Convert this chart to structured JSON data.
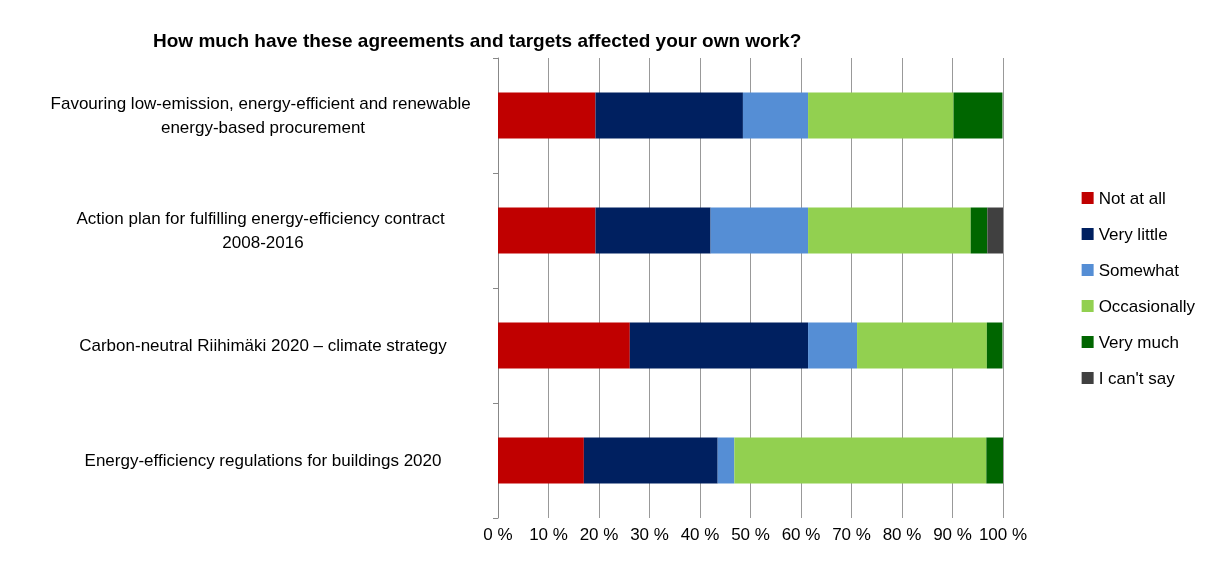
{
  "chart_data": {
    "type": "bar",
    "orientation": "horizontal",
    "stacked": true,
    "title": "How much have these agreements and targets affected your own work?",
    "categories": [
      "Favouring low-emission, energy-efficient and renewable energy-based procurement",
      "Action plan for fulfilling energy-efficiency contract 2008-2016",
      "Carbon-neutral Riihimäki 2020 – climate strategy",
      "Energy-efficiency regulations for buildings 2020"
    ],
    "series": [
      {
        "name": "Not at all",
        "color": "#c00000",
        "values": [
          19.3,
          19.3,
          26.1,
          17.0
        ]
      },
      {
        "name": "Very little",
        "color": "#002060",
        "values": [
          29.2,
          22.8,
          35.3,
          26.5
        ]
      },
      {
        "name": "Somewhat",
        "color": "#558ed5",
        "values": [
          12.9,
          19.3,
          9.7,
          3.3
        ]
      },
      {
        "name": "Occasionally",
        "color": "#92d050",
        "values": [
          28.8,
          32.2,
          25.7,
          49.9
        ]
      },
      {
        "name": "Very much",
        "color": "#006600",
        "values": [
          9.7,
          3.3,
          3.1,
          3.3
        ]
      },
      {
        "name": "I can't say",
        "color": "#404040",
        "values": [
          0,
          3.1,
          0,
          0
        ]
      }
    ],
    "xlim": [
      0,
      100
    ],
    "xticks": [
      {
        "value": 0,
        "label": "0 %"
      },
      {
        "value": 10,
        "label": "10 %"
      },
      {
        "value": 20,
        "label": "20 %"
      },
      {
        "value": 30,
        "label": "30 %"
      },
      {
        "value": 40,
        "label": "40 %"
      },
      {
        "value": 50,
        "label": "50 %"
      },
      {
        "value": 60,
        "label": "60 %"
      },
      {
        "value": 70,
        "label": "70 %"
      },
      {
        "value": 80,
        "label": "80 %"
      },
      {
        "value": 90,
        "label": "90 %"
      },
      {
        "value": 100,
        "label": "100 %"
      }
    ],
    "grid": "x",
    "legend": "right"
  }
}
